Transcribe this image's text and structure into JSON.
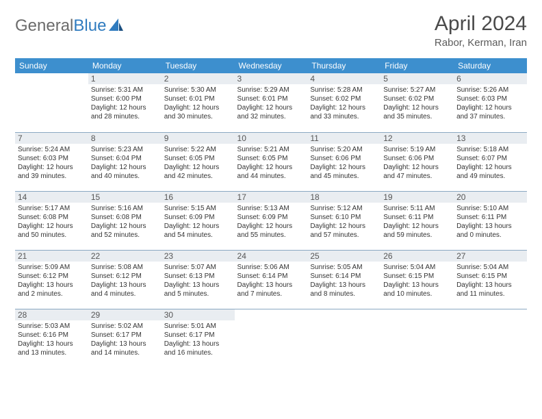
{
  "brand": {
    "name_part1": "General",
    "name_part2": "Blue"
  },
  "title": "April 2024",
  "location": "Rabor, Kerman, Iran",
  "colors": {
    "header_bg": "#3d8fce",
    "header_text": "#ffffff",
    "daynum_bg": "#e9edf1",
    "row_border": "#8aa8c2",
    "brand_gray": "#6b6b6b",
    "brand_blue": "#2f7bbf"
  },
  "weekdays": [
    "Sunday",
    "Monday",
    "Tuesday",
    "Wednesday",
    "Thursday",
    "Friday",
    "Saturday"
  ],
  "weeks": [
    [
      {
        "n": "",
        "sr": "",
        "ss": "",
        "dl": ""
      },
      {
        "n": "1",
        "sr": "5:31 AM",
        "ss": "6:00 PM",
        "dl": "12 hours and 28 minutes."
      },
      {
        "n": "2",
        "sr": "5:30 AM",
        "ss": "6:01 PM",
        "dl": "12 hours and 30 minutes."
      },
      {
        "n": "3",
        "sr": "5:29 AM",
        "ss": "6:01 PM",
        "dl": "12 hours and 32 minutes."
      },
      {
        "n": "4",
        "sr": "5:28 AM",
        "ss": "6:02 PM",
        "dl": "12 hours and 33 minutes."
      },
      {
        "n": "5",
        "sr": "5:27 AM",
        "ss": "6:02 PM",
        "dl": "12 hours and 35 minutes."
      },
      {
        "n": "6",
        "sr": "5:26 AM",
        "ss": "6:03 PM",
        "dl": "12 hours and 37 minutes."
      }
    ],
    [
      {
        "n": "7",
        "sr": "5:24 AM",
        "ss": "6:03 PM",
        "dl": "12 hours and 39 minutes."
      },
      {
        "n": "8",
        "sr": "5:23 AM",
        "ss": "6:04 PM",
        "dl": "12 hours and 40 minutes."
      },
      {
        "n": "9",
        "sr": "5:22 AM",
        "ss": "6:05 PM",
        "dl": "12 hours and 42 minutes."
      },
      {
        "n": "10",
        "sr": "5:21 AM",
        "ss": "6:05 PM",
        "dl": "12 hours and 44 minutes."
      },
      {
        "n": "11",
        "sr": "5:20 AM",
        "ss": "6:06 PM",
        "dl": "12 hours and 45 minutes."
      },
      {
        "n": "12",
        "sr": "5:19 AM",
        "ss": "6:06 PM",
        "dl": "12 hours and 47 minutes."
      },
      {
        "n": "13",
        "sr": "5:18 AM",
        "ss": "6:07 PM",
        "dl": "12 hours and 49 minutes."
      }
    ],
    [
      {
        "n": "14",
        "sr": "5:17 AM",
        "ss": "6:08 PM",
        "dl": "12 hours and 50 minutes."
      },
      {
        "n": "15",
        "sr": "5:16 AM",
        "ss": "6:08 PM",
        "dl": "12 hours and 52 minutes."
      },
      {
        "n": "16",
        "sr": "5:15 AM",
        "ss": "6:09 PM",
        "dl": "12 hours and 54 minutes."
      },
      {
        "n": "17",
        "sr": "5:13 AM",
        "ss": "6:09 PM",
        "dl": "12 hours and 55 minutes."
      },
      {
        "n": "18",
        "sr": "5:12 AM",
        "ss": "6:10 PM",
        "dl": "12 hours and 57 minutes."
      },
      {
        "n": "19",
        "sr": "5:11 AM",
        "ss": "6:11 PM",
        "dl": "12 hours and 59 minutes."
      },
      {
        "n": "20",
        "sr": "5:10 AM",
        "ss": "6:11 PM",
        "dl": "13 hours and 0 minutes."
      }
    ],
    [
      {
        "n": "21",
        "sr": "5:09 AM",
        "ss": "6:12 PM",
        "dl": "13 hours and 2 minutes."
      },
      {
        "n": "22",
        "sr": "5:08 AM",
        "ss": "6:12 PM",
        "dl": "13 hours and 4 minutes."
      },
      {
        "n": "23",
        "sr": "5:07 AM",
        "ss": "6:13 PM",
        "dl": "13 hours and 5 minutes."
      },
      {
        "n": "24",
        "sr": "5:06 AM",
        "ss": "6:14 PM",
        "dl": "13 hours and 7 minutes."
      },
      {
        "n": "25",
        "sr": "5:05 AM",
        "ss": "6:14 PM",
        "dl": "13 hours and 8 minutes."
      },
      {
        "n": "26",
        "sr": "5:04 AM",
        "ss": "6:15 PM",
        "dl": "13 hours and 10 minutes."
      },
      {
        "n": "27",
        "sr": "5:04 AM",
        "ss": "6:15 PM",
        "dl": "13 hours and 11 minutes."
      }
    ],
    [
      {
        "n": "28",
        "sr": "5:03 AM",
        "ss": "6:16 PM",
        "dl": "13 hours and 13 minutes."
      },
      {
        "n": "29",
        "sr": "5:02 AM",
        "ss": "6:17 PM",
        "dl": "13 hours and 14 minutes."
      },
      {
        "n": "30",
        "sr": "5:01 AM",
        "ss": "6:17 PM",
        "dl": "13 hours and 16 minutes."
      },
      {
        "n": "",
        "sr": "",
        "ss": "",
        "dl": ""
      },
      {
        "n": "",
        "sr": "",
        "ss": "",
        "dl": ""
      },
      {
        "n": "",
        "sr": "",
        "ss": "",
        "dl": ""
      },
      {
        "n": "",
        "sr": "",
        "ss": "",
        "dl": ""
      }
    ]
  ],
  "labels": {
    "sunrise": "Sunrise:",
    "sunset": "Sunset:",
    "daylight": "Daylight:"
  }
}
